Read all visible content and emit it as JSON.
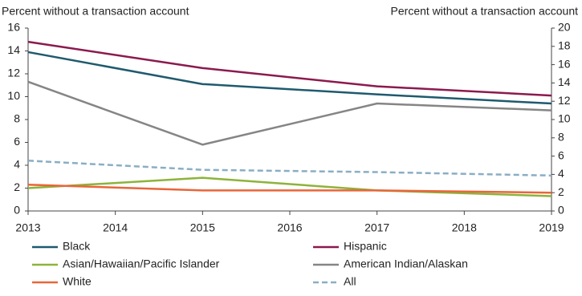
{
  "chart_data": {
    "type": "line",
    "y_label": "Percent without a transaction account",
    "y2_label": "Percent without a transaction account",
    "x": [
      2013,
      2015,
      2017,
      2019
    ],
    "xlim": [
      2013,
      2019
    ],
    "xticks": [
      2013,
      2014,
      2015,
      2016,
      2017,
      2018,
      2019
    ],
    "ylim": [
      0,
      16
    ],
    "yticks": [
      0,
      2,
      4,
      6,
      8,
      10,
      12,
      14,
      16
    ],
    "y2lim": [
      0,
      20
    ],
    "y2ticks": [
      0,
      2,
      4,
      6,
      8,
      10,
      12,
      14,
      16,
      18,
      20
    ],
    "series": [
      {
        "name": "Black",
        "color": "#1f5a6e",
        "values": [
          13.9,
          11.1,
          10.2,
          9.4
        ]
      },
      {
        "name": "Hispanic",
        "color": "#8b1a4e",
        "values": [
          14.8,
          12.5,
          10.9,
          10.1
        ]
      },
      {
        "name": "Asian/Hawaiian/Pacific Islander",
        "color": "#8db33a",
        "values": [
          2.0,
          2.9,
          1.8,
          1.3
        ]
      },
      {
        "name": "American Indian/Alaskan",
        "color": "#858585",
        "values": [
          11.3,
          5.8,
          9.4,
          8.8
        ]
      },
      {
        "name": "White",
        "color": "#e8663a",
        "values": [
          2.3,
          1.8,
          1.8,
          1.6
        ]
      },
      {
        "name": "All",
        "color": "#8aaec4",
        "dashed": true,
        "values": [
          4.4,
          3.6,
          3.4,
          3.1
        ]
      }
    ]
  }
}
